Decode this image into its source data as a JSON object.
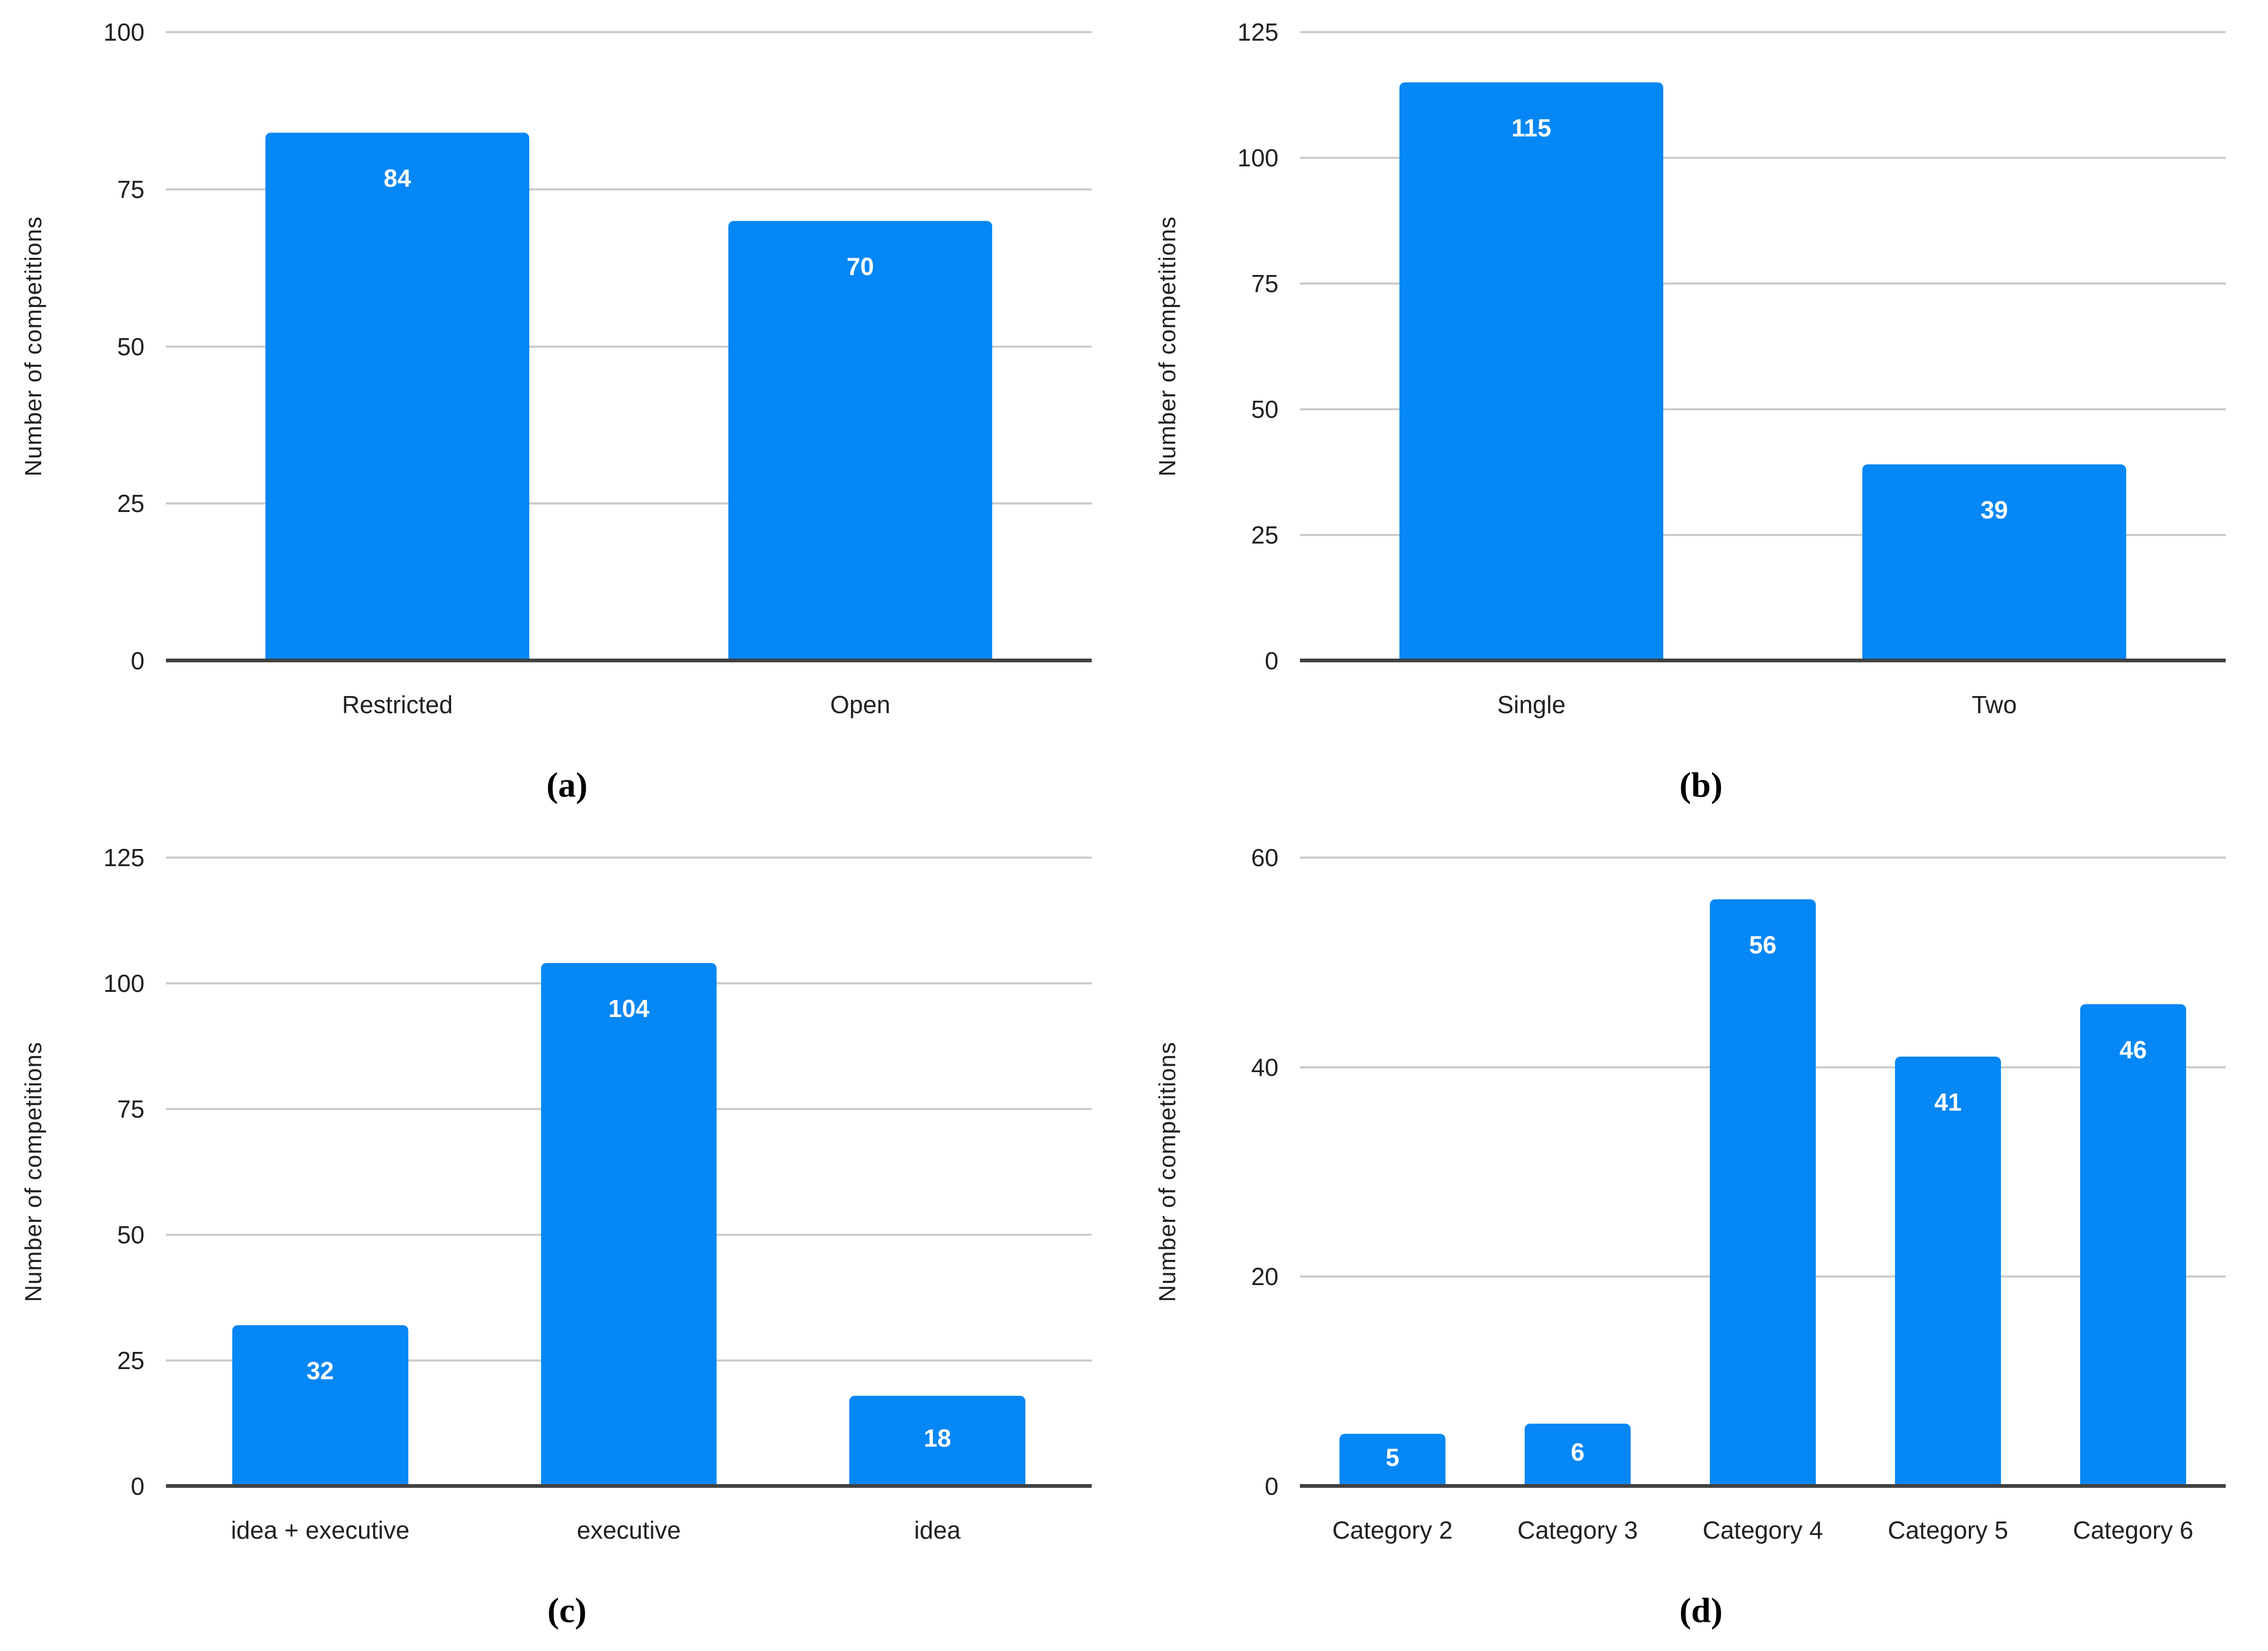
{
  "colors": {
    "bar": "#0587f5",
    "gridline": "#cccccc",
    "baseline": "#424242",
    "axis_text": "#202124",
    "value_label": "#ffffff"
  },
  "chart_data": [
    {
      "id": "a",
      "type": "bar",
      "title": "",
      "xlabel": "",
      "ylabel": "Number of competitions",
      "categories": [
        "Restricted",
        "Open"
      ],
      "values": [
        84,
        70
      ],
      "ylim": [
        0,
        100
      ],
      "yticks": [
        0,
        25,
        50,
        75,
        100
      ],
      "grid": true,
      "legend": "none",
      "caption": "(a)"
    },
    {
      "id": "b",
      "type": "bar",
      "title": "",
      "xlabel": "",
      "ylabel": "Number of competitions",
      "categories": [
        "Single",
        "Two"
      ],
      "values": [
        115,
        39
      ],
      "ylim": [
        0,
        125
      ],
      "yticks": [
        0,
        25,
        50,
        75,
        100,
        125
      ],
      "grid": true,
      "legend": "none",
      "caption": "(b)"
    },
    {
      "id": "c",
      "type": "bar",
      "title": "",
      "xlabel": "",
      "ylabel": "Number of competitions",
      "categories": [
        "idea + executive",
        "executive",
        "idea"
      ],
      "values": [
        32,
        104,
        18
      ],
      "ylim": [
        0,
        125
      ],
      "yticks": [
        0,
        25,
        50,
        75,
        100,
        125
      ],
      "grid": true,
      "legend": "none",
      "caption": "(c)"
    },
    {
      "id": "d",
      "type": "bar",
      "title": "",
      "xlabel": "",
      "ylabel": "Number of competitions",
      "categories": [
        "Category 2",
        "Category 3",
        "Category 4",
        "Category 5",
        "Category 6"
      ],
      "values": [
        5,
        6,
        56,
        41,
        46
      ],
      "ylim": [
        0,
        60
      ],
      "yticks": [
        0,
        20,
        40,
        60
      ],
      "grid": true,
      "legend": "none",
      "caption": "(d)"
    }
  ]
}
